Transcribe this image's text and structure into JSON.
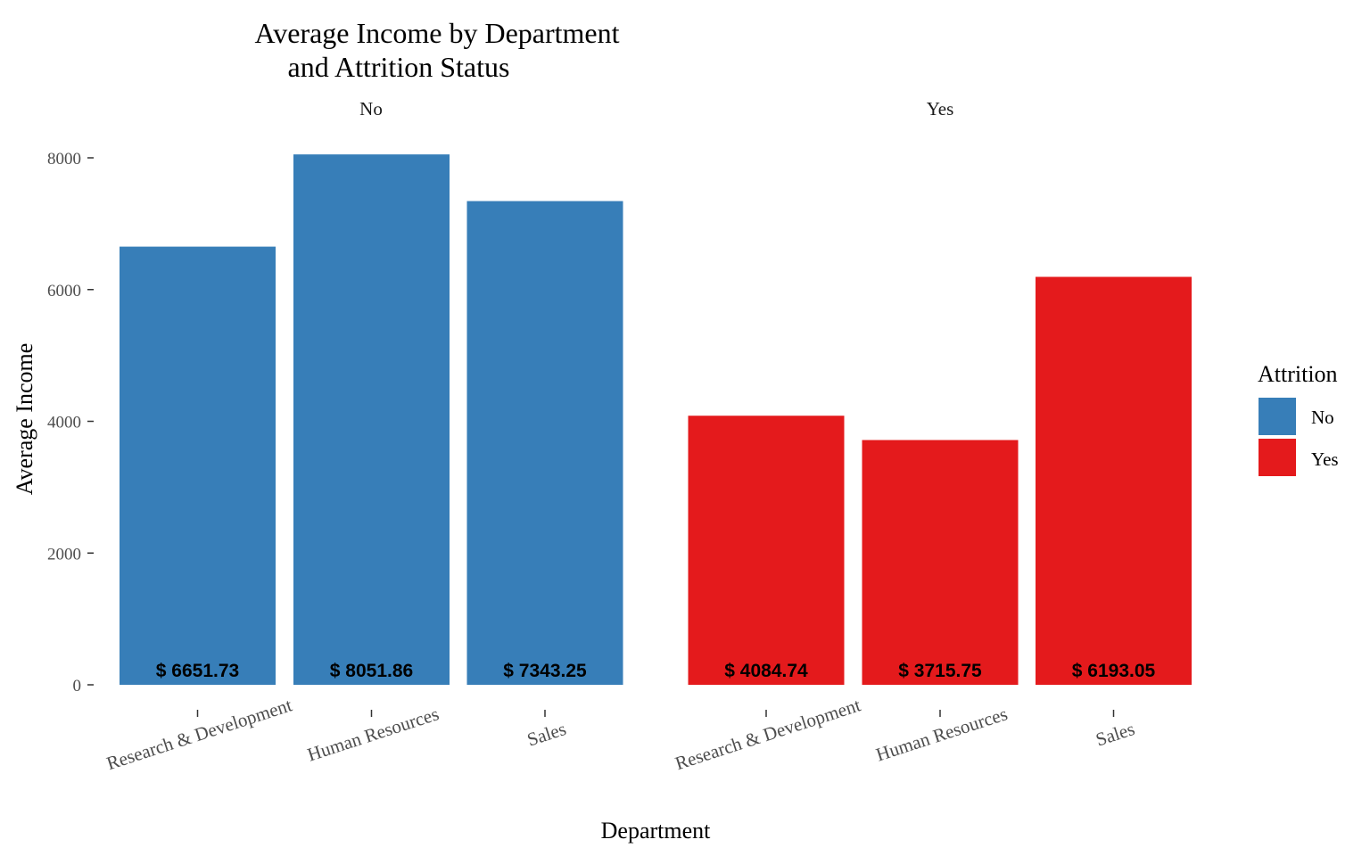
{
  "chart_data": {
    "type": "bar",
    "title_lines": [
      "Average Income by Department",
      "and Attrition Status"
    ],
    "xlabel": "Department",
    "ylabel": "Average Income",
    "ylim": [
      0,
      8200
    ],
    "y_ticks": [
      0,
      2000,
      4000,
      6000,
      8000
    ],
    "grid": false,
    "categories": [
      "Research & Development",
      "Human Resources",
      "Sales"
    ],
    "facets": [
      {
        "name": "No",
        "color": "#377EB8",
        "values": [
          6651.73,
          8051.86,
          7343.25
        ],
        "labels": [
          "$ 6651.73",
          "$ 8051.86",
          "$ 7343.25"
        ]
      },
      {
        "name": "Yes",
        "color": "#E41A1C",
        "values": [
          4084.74,
          3715.75,
          6193.05
        ],
        "labels": [
          "$ 4084.74",
          "$ 3715.75",
          "$ 6193.05"
        ]
      }
    ],
    "legend": {
      "title": "Attrition",
      "position": "right",
      "items": [
        {
          "label": "No",
          "color": "#377EB8"
        },
        {
          "label": "Yes",
          "color": "#E41A1C"
        }
      ]
    }
  }
}
